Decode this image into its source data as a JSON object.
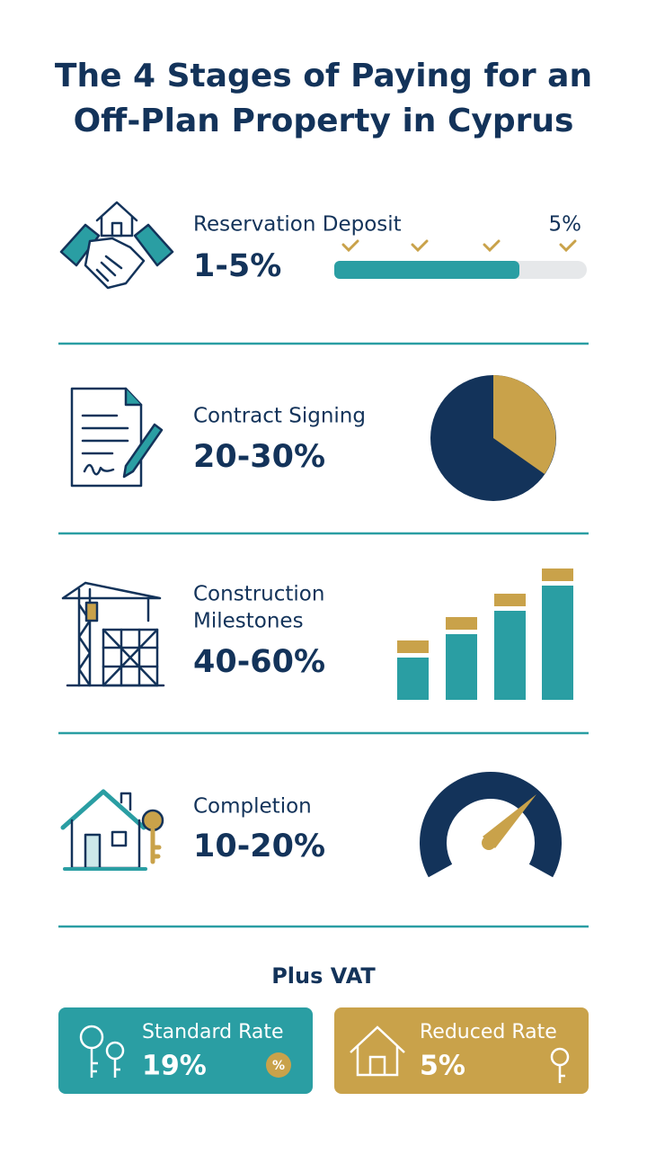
{
  "title": [
    "The 4 Stages of Paying for an",
    "Off-Plan Property in Cyprus"
  ],
  "stages": [
    {
      "label": "Reservation Deposit",
      "range": "1-5%",
      "marker": "5%"
    },
    {
      "label": "Contract Signing",
      "range": "20-30%"
    },
    {
      "label": [
        "Construction",
        "Milestones"
      ],
      "range": "40-60%"
    },
    {
      "label": "Completion",
      "range": "10-20%"
    }
  ],
  "vat": {
    "title": "Plus VAT",
    "rates": [
      {
        "label": "Standard Rate",
        "value": "19%"
      },
      {
        "label": "Reduced Rate",
        "value": "5%"
      }
    ]
  }
}
